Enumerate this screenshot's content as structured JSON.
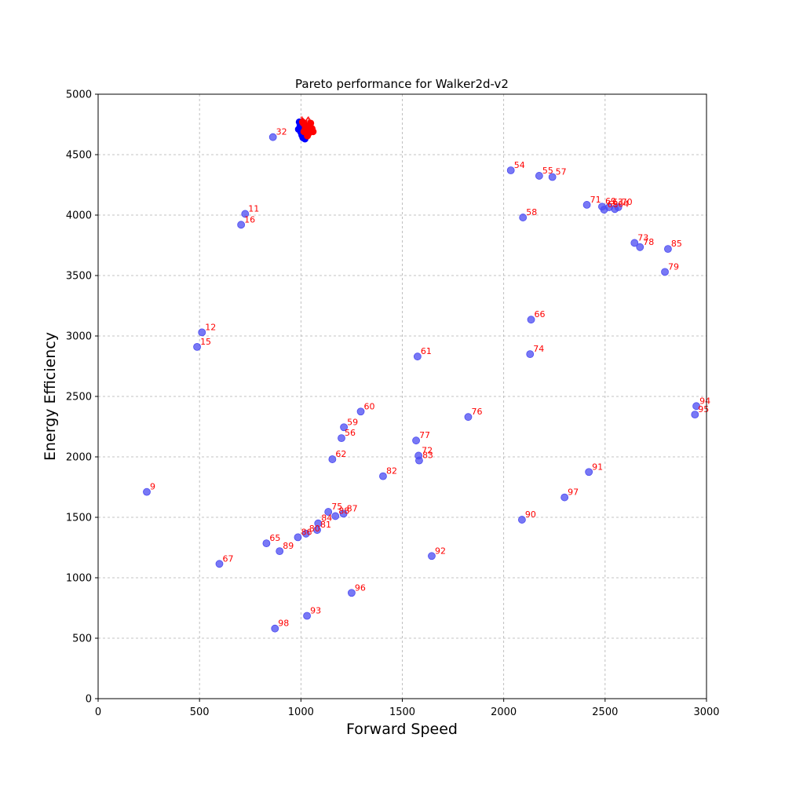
{
  "chart_data": {
    "type": "scatter",
    "title": "Pareto performance for Walker2d-v2",
    "xlabel": "Forward Speed",
    "ylabel": "Energy Efficiency",
    "xlim": [
      0,
      3000
    ],
    "ylim": [
      0,
      5000
    ],
    "xticks": [
      0,
      500,
      1000,
      1500,
      2000,
      2500,
      3000
    ],
    "yticks": [
      0,
      500,
      1000,
      1500,
      2000,
      2500,
      3000,
      3500,
      4000,
      4500,
      5000
    ],
    "grid": true,
    "colors": {
      "point": "#4b4bf2",
      "label": "#ff0000",
      "cluster": "#ff0000",
      "cluster_dark": "#0000ff"
    },
    "points": [
      {
        "label": "9",
        "x": 240,
        "y": 1710
      },
      {
        "label": "11",
        "x": 725,
        "y": 4010
      },
      {
        "label": "12",
        "x": 512,
        "y": 3030
      },
      {
        "label": "15",
        "x": 488,
        "y": 2910
      },
      {
        "label": "16",
        "x": 705,
        "y": 3920
      },
      {
        "label": "32",
        "x": 862,
        "y": 4645
      },
      {
        "label": "54",
        "x": 2035,
        "y": 4370
      },
      {
        "label": "55",
        "x": 2175,
        "y": 4325
      },
      {
        "label": "56",
        "x": 1200,
        "y": 2155
      },
      {
        "label": "57",
        "x": 2240,
        "y": 4315
      },
      {
        "label": "58",
        "x": 2095,
        "y": 3980
      },
      {
        "label": "59",
        "x": 1212,
        "y": 2245
      },
      {
        "label": "60",
        "x": 1295,
        "y": 2375
      },
      {
        "label": "61",
        "x": 1575,
        "y": 2830
      },
      {
        "label": "62",
        "x": 1155,
        "y": 1980
      },
      {
        "label": "63",
        "x": 2520,
        "y": 4065
      },
      {
        "label": "64",
        "x": 2548,
        "y": 4050
      },
      {
        "label": "65",
        "x": 830,
        "y": 1285
      },
      {
        "label": "66",
        "x": 2135,
        "y": 3135
      },
      {
        "label": "67",
        "x": 598,
        "y": 1115
      },
      {
        "label": "68",
        "x": 2495,
        "y": 4045
      },
      {
        "label": "69",
        "x": 2485,
        "y": 4070
      },
      {
        "label": "70",
        "x": 2565,
        "y": 4065
      },
      {
        "label": "71",
        "x": 2410,
        "y": 4085
      },
      {
        "label": "72",
        "x": 1580,
        "y": 2010
      },
      {
        "label": "73",
        "x": 2645,
        "y": 3770
      },
      {
        "label": "74",
        "x": 2130,
        "y": 2850
      },
      {
        "label": "75",
        "x": 1135,
        "y": 1545
      },
      {
        "label": "76",
        "x": 1825,
        "y": 2330
      },
      {
        "label": "77",
        "x": 1568,
        "y": 2135
      },
      {
        "label": "78",
        "x": 2672,
        "y": 3735
      },
      {
        "label": "79",
        "x": 2795,
        "y": 3530
      },
      {
        "label": "80",
        "x": 1025,
        "y": 1365
      },
      {
        "label": "81",
        "x": 1080,
        "y": 1395
      },
      {
        "label": "82",
        "x": 1405,
        "y": 1840
      },
      {
        "label": "83",
        "x": 1583,
        "y": 1970
      },
      {
        "label": "84",
        "x": 1085,
        "y": 1450
      },
      {
        "label": "85",
        "x": 2810,
        "y": 3720
      },
      {
        "label": "86",
        "x": 985,
        "y": 1335
      },
      {
        "label": "87",
        "x": 1210,
        "y": 1530
      },
      {
        "label": "88",
        "x": 1170,
        "y": 1510
      },
      {
        "label": "89",
        "x": 895,
        "y": 1220
      },
      {
        "label": "90",
        "x": 2090,
        "y": 1480
      },
      {
        "label": "91",
        "x": 2420,
        "y": 1875
      },
      {
        "label": "92",
        "x": 1645,
        "y": 1180
      },
      {
        "label": "93",
        "x": 1030,
        "y": 685
      },
      {
        "label": "94",
        "x": 2950,
        "y": 2420
      },
      {
        "label": "95",
        "x": 2943,
        "y": 2350
      },
      {
        "label": "96",
        "x": 1250,
        "y": 875
      },
      {
        "label": "97",
        "x": 2300,
        "y": 1665
      },
      {
        "label": "98",
        "x": 872,
        "y": 580
      }
    ],
    "cluster_points": [
      {
        "label": "10",
        "x": 1012,
        "y": 4760
      },
      {
        "label": "13",
        "x": 1020,
        "y": 4745
      },
      {
        "label": "14",
        "x": 1008,
        "y": 4770
      },
      {
        "x": 1030,
        "y": 4730
      },
      {
        "x": 1040,
        "y": 4720
      },
      {
        "x": 1050,
        "y": 4700
      },
      {
        "x": 1035,
        "y": 4690
      },
      {
        "x": 1045,
        "y": 4740
      },
      {
        "x": 1055,
        "y": 4715
      },
      {
        "x": 1025,
        "y": 4705
      },
      {
        "x": 1015,
        "y": 4690
      },
      {
        "x": 1048,
        "y": 4760
      },
      {
        "x": 1038,
        "y": 4675
      },
      {
        "x": 1060,
        "y": 4690
      },
      {
        "x": 1022,
        "y": 4720
      },
      {
        "x": 1032,
        "y": 4655
      },
      {
        "x": 1042,
        "y": 4700
      }
    ],
    "cluster_dark_points": [
      {
        "x": 992,
        "y": 4770
      },
      {
        "x": 996,
        "y": 4745
      },
      {
        "x": 988,
        "y": 4710
      },
      {
        "x": 1000,
        "y": 4685
      },
      {
        "x": 1005,
        "y": 4660
      },
      {
        "x": 1010,
        "y": 4640
      },
      {
        "x": 1020,
        "y": 4630
      },
      {
        "x": 998,
        "y": 4725
      },
      {
        "x": 1003,
        "y": 4755
      }
    ]
  }
}
